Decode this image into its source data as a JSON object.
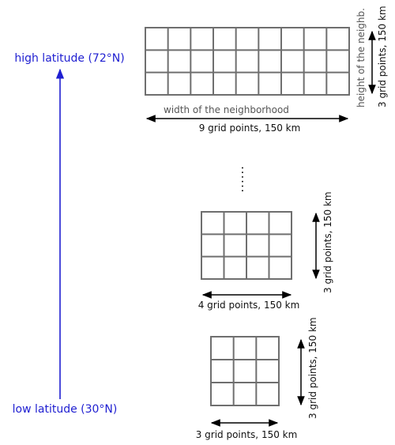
{
  "latitude": {
    "high": "high latitude (72°N)",
    "low": "low latitude (30°N)",
    "axis_color": "#1f1fd1"
  },
  "grids": [
    {
      "cols": 9,
      "rows": 3,
      "width_label": "width of the neighborhood",
      "width_value": "9 grid points, 150 km",
      "height_label": "height of the neighb.",
      "height_value": "3 grid points, 150 km"
    },
    {
      "cols": 4,
      "rows": 3,
      "width_value": "4 grid points, 150 km",
      "height_value": "3 grid points, 150 km"
    },
    {
      "cols": 3,
      "rows": 3,
      "width_value": "3 grid points, 150 km",
      "height_value": "3 grid points, 150 km"
    }
  ],
  "ellipsis": "......"
}
